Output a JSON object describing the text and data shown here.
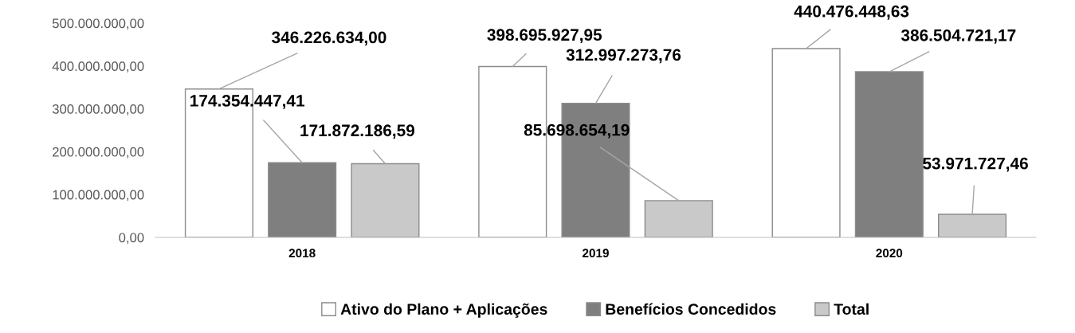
{
  "chart_data": {
    "type": "bar",
    "categories": [
      "2018",
      "2019",
      "2020"
    ],
    "series": [
      {
        "name": "Ativo do Plano + Aplicações",
        "color": "#ffffff",
        "values": [
          346226634.0,
          398695927.95,
          440476448.63
        ],
        "value_labels": [
          "346.226.634,00",
          "398.695.927,95",
          "440.476.448,63"
        ]
      },
      {
        "name": "Benefícios Concedidos",
        "color": "#7f7f7f",
        "values": [
          174354447.41,
          312997273.76,
          386504721.17
        ],
        "value_labels": [
          "174.354.447,41",
          "312.997.273,76",
          "386.504.721,17"
        ]
      },
      {
        "name": "Total",
        "color": "#c9c9c9",
        "values": [
          171872186.59,
          85698654.19,
          53971727.46
        ],
        "value_labels": [
          "171.872.186,59",
          "85.698.654,19",
          "53.971.727,46"
        ]
      }
    ],
    "ylim": [
      0,
      500000000
    ],
    "yticks": [
      {
        "value": 0,
        "label": "0,00"
      },
      {
        "value": 100000000,
        "label": "100.000.000,00"
      },
      {
        "value": 200000000,
        "label": "200.000.000,00"
      },
      {
        "value": 300000000,
        "label": "300.000.000,00"
      },
      {
        "value": 400000000,
        "label": "400.000.000,00"
      },
      {
        "value": 500000000,
        "label": "500.000.000,00"
      }
    ],
    "grid": false,
    "legend": "bottom"
  }
}
